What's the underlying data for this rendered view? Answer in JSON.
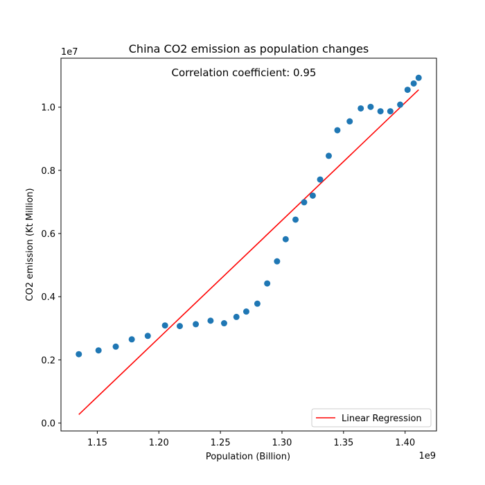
{
  "chart_data": {
    "type": "scatter",
    "title": "China CO2 emission as population changes",
    "xlabel": "Population (Billion)",
    "ylabel": "CO2 emission (Kt Million)",
    "x_offset_text": "1e9",
    "y_offset_text": "1e7",
    "annotation": "Correlation coefficient: 0.95",
    "xlim": [
      1.1205,
      1.4255
    ],
    "ylim": [
      -0.025,
      1.155
    ],
    "x_ticks": [
      1.15,
      1.2,
      1.25,
      1.3,
      1.35,
      1.4
    ],
    "x_tick_labels": [
      "1.15",
      "1.20",
      "1.25",
      "1.30",
      "1.35",
      "1.40"
    ],
    "y_ticks": [
      0.0,
      0.2,
      0.4,
      0.6,
      0.8,
      1.0
    ],
    "y_tick_labels": [
      "0.0",
      "0.2",
      "0.4",
      "0.6",
      "0.8",
      "1.0"
    ],
    "grid": false,
    "legend_position": "lower-right",
    "series": [
      {
        "type": "scatter",
        "color": "#1f77b4",
        "points": [
          [
            1.135,
            0.218
          ],
          [
            1.151,
            0.23
          ],
          [
            1.165,
            0.242
          ],
          [
            1.178,
            0.265
          ],
          [
            1.191,
            0.276
          ],
          [
            1.205,
            0.309
          ],
          [
            1.217,
            0.307
          ],
          [
            1.23,
            0.313
          ],
          [
            1.242,
            0.324
          ],
          [
            1.253,
            0.316
          ],
          [
            1.263,
            0.336
          ],
          [
            1.271,
            0.353
          ],
          [
            1.28,
            0.378
          ],
          [
            1.288,
            0.442
          ],
          [
            1.296,
            0.512
          ],
          [
            1.303,
            0.582
          ],
          [
            1.311,
            0.644
          ],
          [
            1.318,
            0.699
          ],
          [
            1.325,
            0.72
          ],
          [
            1.331,
            0.771
          ],
          [
            1.338,
            0.846
          ],
          [
            1.345,
            0.927
          ],
          [
            1.355,
            0.955
          ],
          [
            1.364,
            0.996
          ],
          [
            1.372,
            1.001
          ],
          [
            1.38,
            0.987
          ],
          [
            1.388,
            0.987
          ],
          [
            1.396,
            1.008
          ],
          [
            1.402,
            1.055
          ],
          [
            1.407,
            1.075
          ],
          [
            1.411,
            1.093
          ]
        ]
      },
      {
        "type": "line",
        "name": "Linear Regression",
        "color": "#ff0000",
        "points": [
          [
            1.135,
            0.027
          ],
          [
            1.411,
            1.055
          ]
        ]
      }
    ]
  }
}
